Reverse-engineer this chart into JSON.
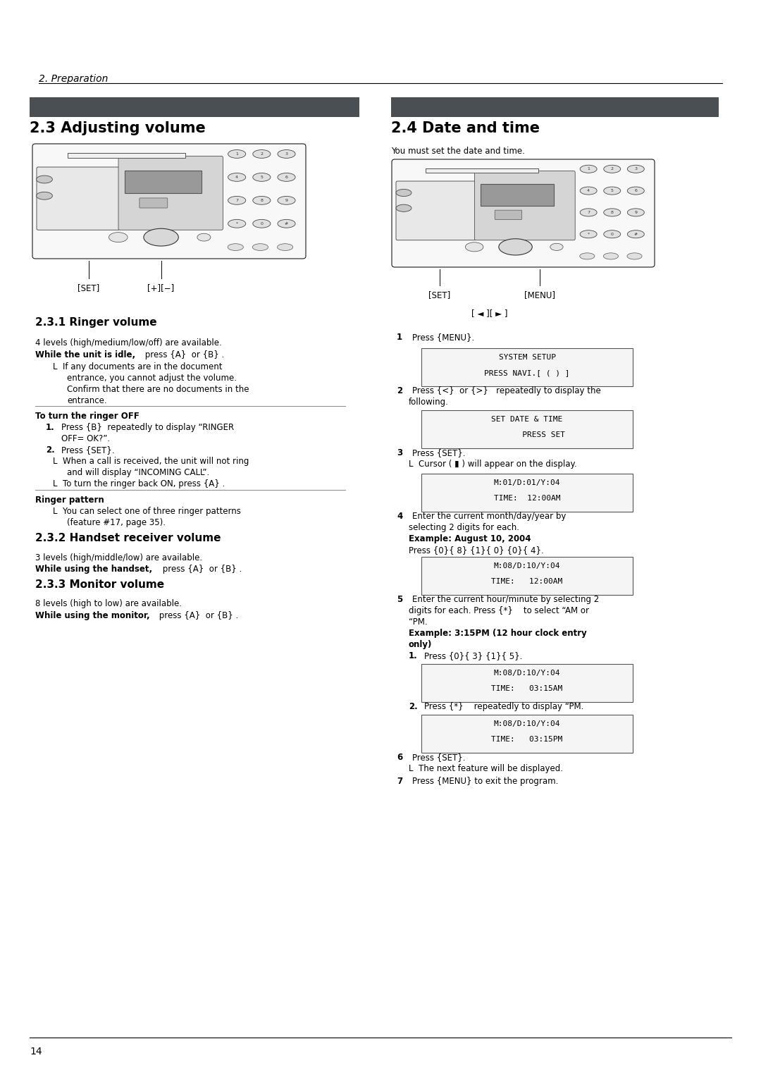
{
  "bg_color": "#ffffff",
  "page_width": 10.8,
  "page_height": 15.28,
  "dpi": 100,
  "header_text": "2. Preparation",
  "left_section_title": "2.3 Adjusting volume",
  "right_section_title": "2.4 Date and time",
  "section_bar_color": "#4a4f54",
  "footer_text": "14"
}
